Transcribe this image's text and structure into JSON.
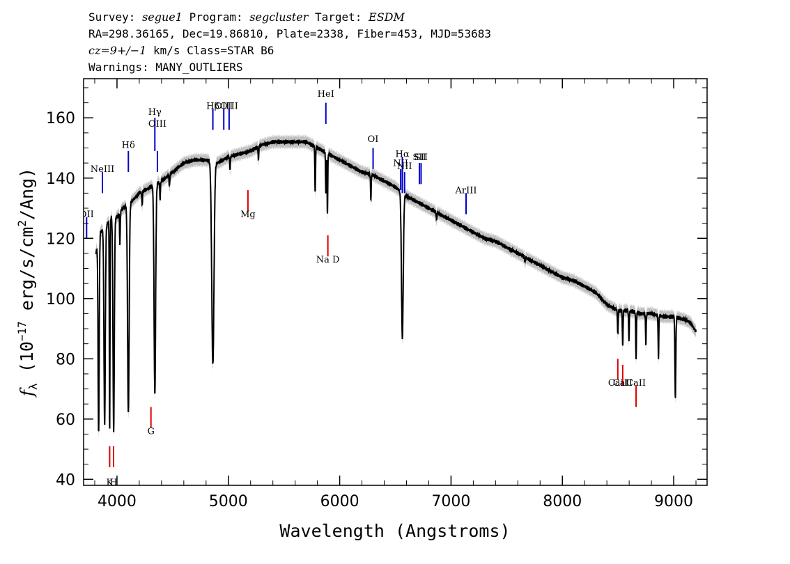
{
  "header": {
    "line1": {
      "survey_label": "Survey: ",
      "survey_value": "segue1",
      "program_label": " Program: ",
      "program_value": "segcluster",
      "target_label": " Target: ",
      "target_value": "ESDM"
    },
    "line2": "RA=298.36165, Dec=19.86810, Plate=2338, Fiber=453, MJD=53683",
    "line3": {
      "cz_value": "cz=9+/−1",
      "rest": " km/s Class=STAR B6"
    },
    "line4": "Warnings: MANY_OUTLIERS"
  },
  "chart_data": {
    "type": "line",
    "xlabel": "Wavelength (Angstroms)",
    "ylabel_main": "f",
    "ylabel_sub": "λ",
    "ylabel_open": " (10",
    "ylabel_exp1": "−17",
    "ylabel_mid": " erg/s/cm",
    "ylabel_exp2": "2",
    "ylabel_close": "/Ang)",
    "xlim": [
      3700,
      9300
    ],
    "ylim": [
      38,
      173
    ],
    "xticks": [
      4000,
      5000,
      6000,
      7000,
      8000,
      9000
    ],
    "yticks": [
      40,
      60,
      80,
      100,
      120,
      140,
      160
    ],
    "xtick_labels": [
      "4000",
      "5000",
      "6000",
      "7000",
      "8000",
      "9000"
    ],
    "ytick_labels": [
      "40",
      "60",
      "80",
      "100",
      "120",
      "140",
      "160"
    ],
    "grid": false,
    "colors": {
      "spectrum": "#000000",
      "error_band": "#c0c0c0",
      "emission": "#0000cc",
      "absorption": "#dd0000"
    },
    "continuum": [
      [
        3810,
        115
      ],
      [
        3850,
        122
      ],
      [
        3900,
        124
      ],
      [
        3950,
        127
      ],
      [
        4000,
        127
      ],
      [
        4050,
        130
      ],
      [
        4100,
        131
      ],
      [
        4200,
        135
      ],
      [
        4300,
        137
      ],
      [
        4400,
        139
      ],
      [
        4500,
        142
      ],
      [
        4600,
        145
      ],
      [
        4700,
        146
      ],
      [
        4800,
        146
      ],
      [
        4900,
        145
      ],
      [
        4950,
        146
      ],
      [
        5000,
        147
      ],
      [
        5100,
        148
      ],
      [
        5200,
        149
      ],
      [
        5300,
        151
      ],
      [
        5400,
        152
      ],
      [
        5500,
        152
      ],
      [
        5600,
        152
      ],
      [
        5700,
        152
      ],
      [
        5800,
        150
      ],
      [
        5900,
        148
      ],
      [
        6000,
        146
      ],
      [
        6100,
        144
      ],
      [
        6200,
        142
      ],
      [
        6300,
        141
      ],
      [
        6400,
        139
      ],
      [
        6500,
        137
      ],
      [
        6600,
        134
      ],
      [
        6700,
        132
      ],
      [
        6800,
        130
      ],
      [
        6900,
        128
      ],
      [
        7000,
        126
      ],
      [
        7100,
        124
      ],
      [
        7200,
        122
      ],
      [
        7300,
        120
      ],
      [
        7400,
        119
      ],
      [
        7500,
        117
      ],
      [
        7600,
        115
      ],
      [
        7700,
        113
      ],
      [
        7800,
        111
      ],
      [
        7900,
        109
      ],
      [
        8000,
        107
      ],
      [
        8100,
        106
      ],
      [
        8200,
        104
      ],
      [
        8300,
        102
      ],
      [
        8400,
        98
      ],
      [
        8500,
        96
      ],
      [
        8600,
        96
      ],
      [
        8700,
        95
      ],
      [
        8800,
        95
      ],
      [
        8900,
        94
      ],
      [
        9000,
        94
      ],
      [
        9100,
        93
      ],
      [
        9150,
        92
      ],
      [
        9200,
        89
      ]
    ],
    "absorption_features": [
      [
        3835,
        55,
        5
      ],
      [
        3889,
        58,
        6
      ],
      [
        3934,
        56,
        3
      ],
      [
        3970,
        56,
        6
      ],
      [
        4026,
        118,
        3
      ],
      [
        4102,
        62,
        7
      ],
      [
        4226,
        131,
        3
      ],
      [
        4340,
        68,
        7
      ],
      [
        4387,
        133,
        3
      ],
      [
        4471,
        137,
        3
      ],
      [
        4861,
        78,
        10
      ],
      [
        5015,
        143,
        3
      ],
      [
        5270,
        146,
        3
      ],
      [
        5780,
        135,
        3
      ],
      [
        5876,
        135,
        3
      ],
      [
        5890,
        128,
        3
      ],
      [
        6280,
        133,
        3
      ],
      [
        6563,
        87,
        8
      ],
      [
        6870,
        126,
        3
      ],
      [
        7665,
        112,
        3
      ],
      [
        8498,
        88,
        3
      ],
      [
        8542,
        84,
        3
      ],
      [
        8598,
        86,
        3
      ],
      [
        8662,
        80,
        3
      ],
      [
        8750,
        85,
        3
      ],
      [
        8863,
        80,
        3
      ],
      [
        9015,
        67,
        4
      ]
    ],
    "error_band_halfwidth": 2.0,
    "emission_lines": [
      {
        "label": "OII",
        "wavelength": 3727,
        "line": [
          120,
          127
        ],
        "text_y": 127
      },
      {
        "label": "NeIII",
        "wavelength": 3869,
        "line": [
          135,
          142
        ],
        "text_y": 142
      },
      {
        "label": "Hδ",
        "wavelength": 4102,
        "line": [
          142,
          149
        ],
        "text_y": 150
      },
      {
        "label": "Hγ",
        "wavelength": 4340,
        "line": [
          149,
          160
        ],
        "text_y": 161
      },
      {
        "label": "OIII",
        "wavelength": 4363,
        "line": [
          142,
          149
        ],
        "text_y": 157
      },
      {
        "label": "Hβ",
        "wavelength": 4861,
        "line": [
          156,
          163
        ],
        "text_y": 163
      },
      {
        "label": "OIII",
        "wavelength": 4959,
        "line": [
          156,
          163
        ],
        "text_y": 163
      },
      {
        "label": "OIII",
        "wavelength": 5007,
        "line": [
          156,
          163
        ],
        "text_y": 163
      },
      {
        "label": "HeI",
        "wavelength": 5876,
        "line": [
          158,
          165
        ],
        "text_y": 167
      },
      {
        "label": "OI",
        "wavelength": 6300,
        "line": [
          143,
          150
        ],
        "text_y": 152
      },
      {
        "label": "NII",
        "wavelength": 6548,
        "line": [
          136,
          143
        ],
        "text_y": 144
      },
      {
        "label": "Hα",
        "wavelength": 6563,
        "line": [
          135,
          147
        ],
        "text_y": 147
      },
      {
        "label": "NII",
        "wavelength": 6583,
        "line": [
          135,
          142
        ],
        "text_y": 143
      },
      {
        "label": "SII",
        "wavelength": 6716,
        "line": [
          138,
          145
        ],
        "text_y": 146
      },
      {
        "label": "SII",
        "wavelength": 6731,
        "line": [
          138,
          145
        ],
        "text_y": 146
      },
      {
        "label": "ArIII",
        "wavelength": 7135,
        "line": [
          128,
          135
        ],
        "text_y": 135
      }
    ],
    "absorption_lines": [
      {
        "label": "K",
        "wavelength": 3934,
        "line": [
          44,
          51
        ],
        "text_y": 38
      },
      {
        "label": "H",
        "wavelength": 3969,
        "line": [
          44,
          51
        ],
        "text_y": 38
      },
      {
        "label": "G",
        "wavelength": 4305,
        "line": [
          57,
          64
        ],
        "text_y": 55
      },
      {
        "label": "Mg",
        "wavelength": 5176,
        "line": [
          129,
          136
        ],
        "text_y": 127
      },
      {
        "label": "Na D",
        "wavelength": 5894,
        "line": [
          114,
          121
        ],
        "text_y": 112
      },
      {
        "label": "CaII",
        "wavelength": 8498,
        "line": [
          73,
          80
        ],
        "text_y": 71
      },
      {
        "label": "CaII",
        "wavelength": 8542,
        "line": [
          71,
          78
        ],
        "text_y": 71
      },
      {
        "label": "CaII",
        "wavelength": 8662,
        "line": [
          64,
          71
        ],
        "text_y": 71
      }
    ]
  }
}
